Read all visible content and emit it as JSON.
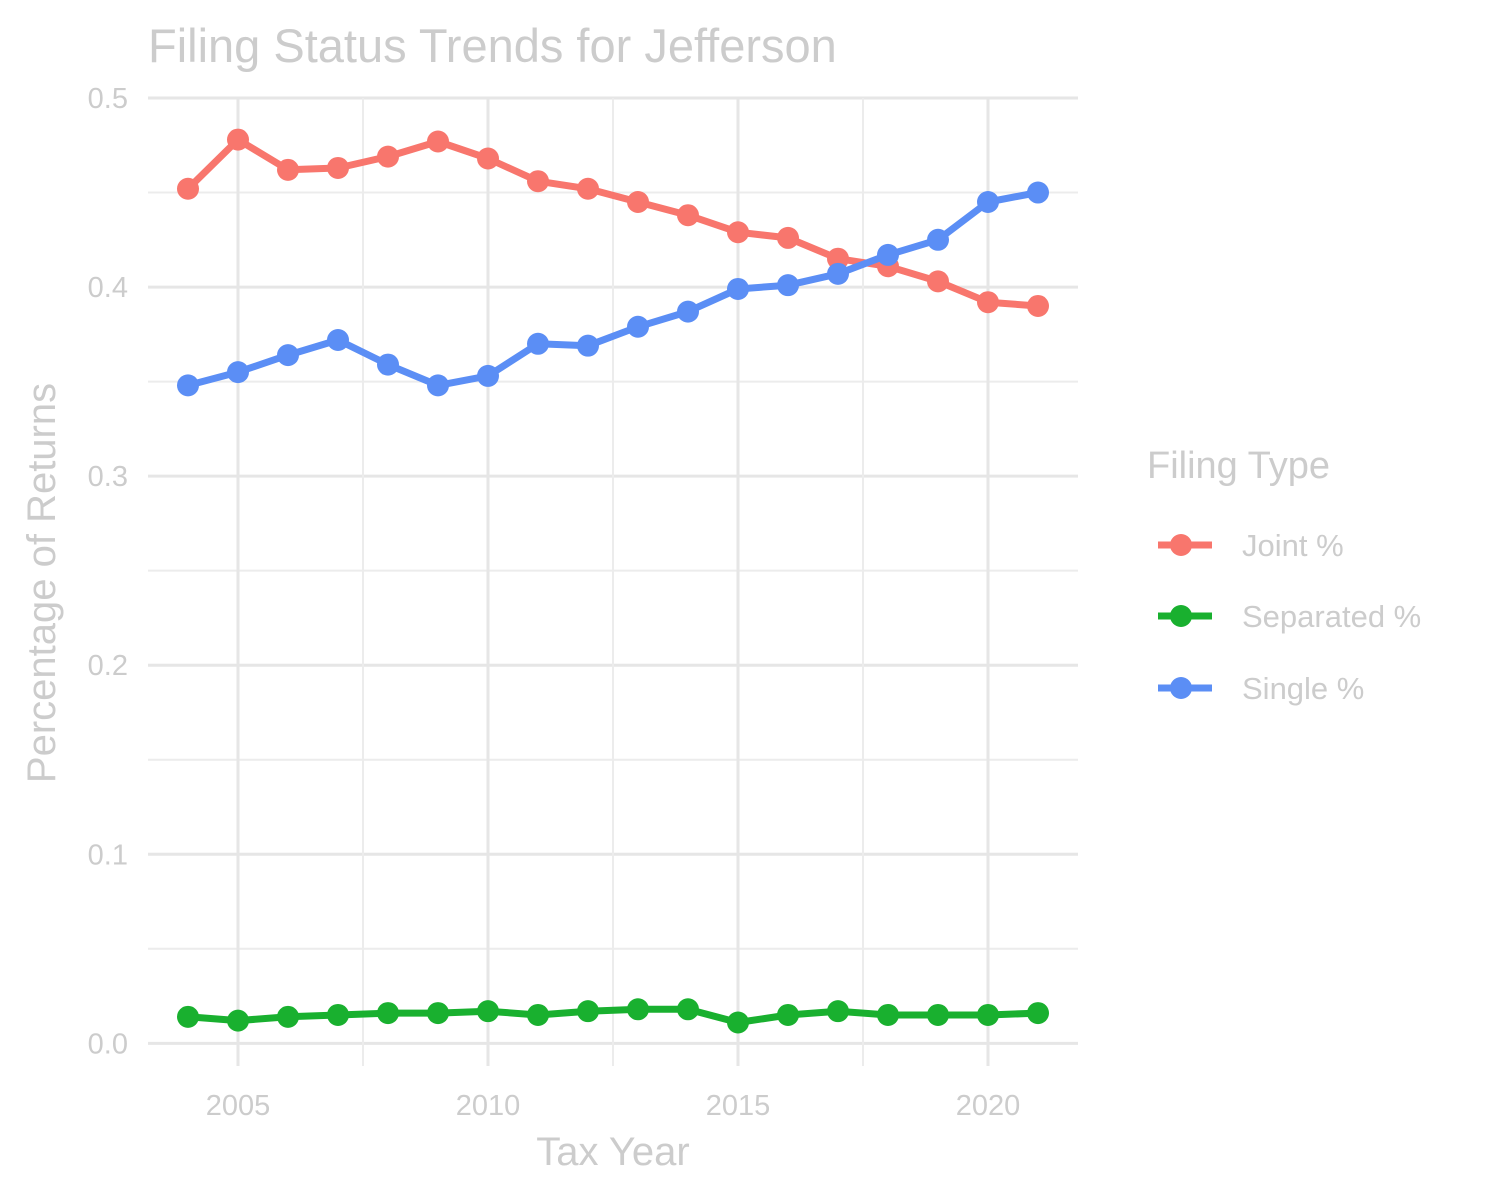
{
  "chart_data": {
    "type": "line",
    "title": "Filing Status Trends for Jefferson",
    "xlabel": "Tax Year",
    "ylabel": "Percentage of Returns",
    "xlim": [
      2003.2,
      2021.8
    ],
    "ylim": [
      -0.012,
      0.5
    ],
    "x_ticks": [
      2005,
      2010,
      2015,
      2020
    ],
    "x_tick_labels": [
      "2005",
      "2010",
      "2015",
      "2020"
    ],
    "y_ticks": [
      0.0,
      0.1,
      0.2,
      0.3,
      0.4,
      0.5
    ],
    "y_tick_labels": [
      "0.0",
      "0.1",
      "0.2",
      "0.3",
      "0.4",
      "0.5"
    ],
    "grid": true,
    "legend": {
      "title": "Filing Type",
      "position": "right"
    },
    "x": [
      2004,
      2005,
      2006,
      2007,
      2008,
      2009,
      2010,
      2011,
      2012,
      2013,
      2014,
      2015,
      2016,
      2017,
      2018,
      2019,
      2020,
      2021
    ],
    "series": [
      {
        "name": "Joint %",
        "color": "#F8766D",
        "values": [
          0.452,
          0.478,
          0.462,
          0.463,
          0.469,
          0.477,
          0.468,
          0.456,
          0.452,
          0.445,
          0.438,
          0.429,
          0.426,
          0.415,
          0.411,
          0.403,
          0.392,
          0.39
        ]
      },
      {
        "name": "Separated %",
        "color": "#19B02F",
        "values": [
          0.014,
          0.012,
          0.014,
          0.015,
          0.016,
          0.016,
          0.017,
          0.015,
          0.017,
          0.018,
          0.018,
          0.011,
          0.015,
          0.017,
          0.015,
          0.015,
          0.015,
          0.016
        ]
      },
      {
        "name": "Single %",
        "color": "#5B8EF5",
        "values": [
          0.348,
          0.355,
          0.364,
          0.372,
          0.359,
          0.348,
          0.353,
          0.37,
          0.369,
          0.379,
          0.387,
          0.399,
          0.401,
          0.407,
          0.417,
          0.425,
          0.445,
          0.45
        ]
      }
    ]
  }
}
